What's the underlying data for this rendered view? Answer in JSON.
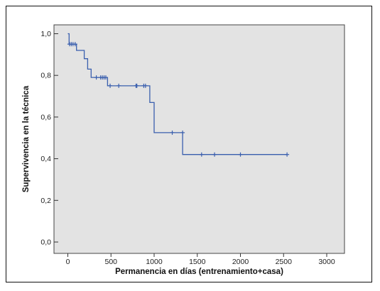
{
  "chart_data": {
    "type": "line",
    "xlabel": "Permanencia en días (entrenamiento+casa)",
    "ylabel": "Supervivencia en la técnica",
    "xlim": [
      0,
      3000
    ],
    "ylim": [
      0.0,
      1.0
    ],
    "x_ticks": [
      0,
      500,
      1000,
      1500,
      2000,
      2500,
      3000
    ],
    "x_tick_labels": [
      "0",
      "500",
      "1000",
      "1500",
      "2000",
      "2500",
      "3000"
    ],
    "y_ticks": [
      0.0,
      0.2,
      0.4,
      0.6,
      0.8,
      1.0
    ],
    "y_tick_labels": [
      "0,0",
      "0,2",
      "0,4",
      "0,6",
      "0,8",
      "1,0"
    ],
    "grid": false,
    "colors": {
      "plot_background": "#e3e3e3",
      "series": "#3a5fae"
    },
    "series": [
      {
        "step_points": [
          [
            0,
            1.0
          ],
          [
            15,
            1.0
          ],
          [
            15,
            0.95
          ],
          [
            100,
            0.95
          ],
          [
            100,
            0.92
          ],
          [
            190,
            0.92
          ],
          [
            190,
            0.88
          ],
          [
            230,
            0.88
          ],
          [
            230,
            0.83
          ],
          [
            270,
            0.83
          ],
          [
            270,
            0.79
          ],
          [
            460,
            0.79
          ],
          [
            460,
            0.75
          ],
          [
            950,
            0.75
          ],
          [
            950,
            0.67
          ],
          [
            1000,
            0.67
          ],
          [
            1000,
            0.525
          ],
          [
            1330,
            0.525
          ],
          [
            1330,
            0.42
          ],
          [
            2540,
            0.42
          ]
        ],
        "censor_x": [
          20,
          40,
          60,
          85,
          330,
          380,
          400,
          420,
          440,
          490,
          590,
          790,
          800,
          880,
          900,
          1210,
          1330,
          1550,
          1700,
          2000,
          2540
        ],
        "censor_y": [
          0.95,
          0.95,
          0.95,
          0.95,
          0.79,
          0.79,
          0.79,
          0.79,
          0.79,
          0.75,
          0.75,
          0.75,
          0.75,
          0.75,
          0.75,
          0.525,
          0.525,
          0.42,
          0.42,
          0.42,
          0.42
        ]
      }
    ]
  }
}
